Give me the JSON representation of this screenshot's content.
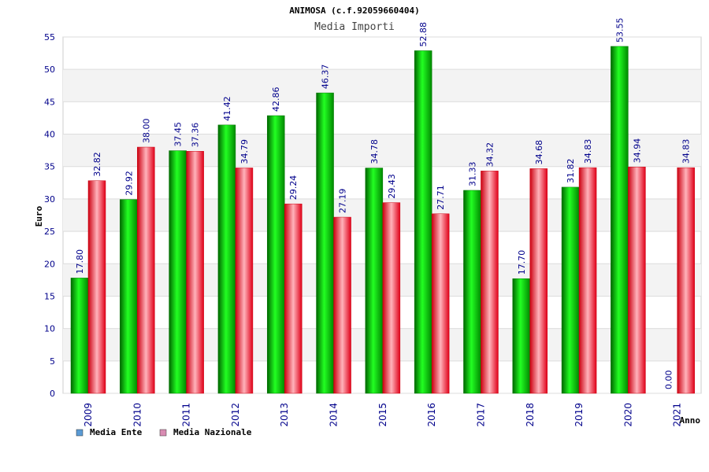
{
  "chart_data": {
    "type": "bar",
    "title": "ANIMOSA (c.f.92059660404)",
    "subtitle": "Media Importi",
    "ylabel": "Euro",
    "xlabel": "Anno",
    "ylim": [
      0,
      55
    ],
    "ytick_step": 5,
    "grid": true,
    "legend_position": "bottom-left",
    "categories": [
      "2009",
      "2010",
      "2011",
      "2012",
      "2013",
      "2014",
      "2015",
      "2016",
      "2017",
      "2018",
      "2019",
      "2020",
      "2021"
    ],
    "series": [
      {
        "name": "Media Ente",
        "color": "#00c000",
        "legend_color": "#5b9bd5",
        "values": [
          17.8,
          29.92,
          37.45,
          41.42,
          42.86,
          46.37,
          34.78,
          52.88,
          31.33,
          17.7,
          31.82,
          53.55,
          0.0
        ],
        "labels": [
          "17.80",
          "29.92",
          "37.45",
          "41.42",
          "42.86",
          "46.37",
          "34.78",
          "52.88",
          "31.33",
          "17.70",
          "31.82",
          "53.55",
          "0.00"
        ]
      },
      {
        "name": "Media Nazionale",
        "color": "#e8001c",
        "legend_color": "#d98cb3",
        "values": [
          32.82,
          38.0,
          37.36,
          34.79,
          29.24,
          27.19,
          29.43,
          27.71,
          34.32,
          34.68,
          34.83,
          34.94,
          34.83
        ],
        "labels": [
          "32.82",
          "38.00",
          "37.36",
          "34.79",
          "29.24",
          "27.19",
          "29.43",
          "27.71",
          "34.32",
          "34.68",
          "34.83",
          "34.94",
          "34.83"
        ]
      }
    ]
  }
}
